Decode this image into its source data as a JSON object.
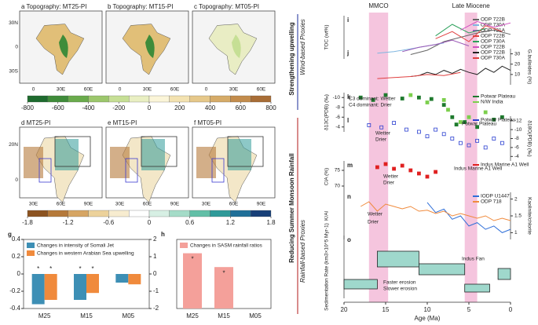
{
  "maps_top": {
    "titles": [
      "a Topography: MT25-PI",
      "b Topography: MT15-PI",
      "c Topography: MT05-PI"
    ],
    "lat_labels": [
      "30N",
      "0",
      "30S"
    ],
    "lon_labels": [
      "0",
      "30E",
      "60E"
    ]
  },
  "colorbar_top": {
    "ticks": [
      -800,
      -600,
      -400,
      -200,
      0,
      200,
      400,
      600,
      800
    ],
    "colors": [
      "#1e6b2e",
      "#3f8c3a",
      "#6aab4c",
      "#9cc76c",
      "#c6df95",
      "#e9efc2",
      "#fbf5d8",
      "#f3e2b0",
      "#e6c88a",
      "#d6ab68",
      "#c38c4c",
      "#a86d36"
    ]
  },
  "maps_bottom": {
    "titles": [
      "d MT25-PI",
      "e MT15-PI",
      "f MT05-PI"
    ],
    "lat_labels": [
      "20N",
      "0"
    ],
    "lon_labels": [
      "30E",
      "60E",
      "90E"
    ]
  },
  "colorbar_bottom": {
    "ticks": [
      -1.8,
      -1.2,
      -0.6,
      0,
      0.6,
      1.2,
      1.8
    ],
    "colors": [
      "#8c5320",
      "#b5793a",
      "#d6a563",
      "#ecd29b",
      "#f7ecd0",
      "#ffffff",
      "#d7efe4",
      "#a5dcc8",
      "#62bfa7",
      "#2f9a99",
      "#1f6f98",
      "#173f78"
    ]
  },
  "side_labels": {
    "upwelling": "Strengthening upwelling",
    "wind": "Wind-based Proxies",
    "rainfall": "Reducing Summer Monsoon Rainfall",
    "rain_proxies": "Rainfall-based Proxies"
  },
  "chart_data": [
    {
      "type": "bar",
      "panel": "g",
      "categories": [
        "M25",
        "M15",
        "M05"
      ],
      "ylim": [
        -0.4,
        0.4
      ],
      "yticks": [
        -0.4,
        -0.2,
        0,
        0.2,
        0.4
      ],
      "y2lim": [
        -2,
        2
      ],
      "y2ticks": [
        -2,
        -1,
        0,
        1,
        2
      ],
      "series": [
        {
          "name": "Changes in intensity of Somali Jet",
          "color": "#3d8fb5",
          "values": [
            -0.35,
            -0.3,
            -0.1
          ],
          "markers": [
            "*",
            "*",
            null
          ]
        },
        {
          "name": "Changes in western Arabian Sea upwelling",
          "color": "#f08a3c",
          "axis": "y2",
          "values": [
            -1.5,
            -1.1,
            -0.6
          ],
          "markers": [
            "*",
            "*",
            null
          ]
        }
      ]
    },
    {
      "type": "bar",
      "panel": "h",
      "categories": [
        "M25",
        "M15",
        "M05"
      ],
      "ylim": [
        0,
        20
      ],
      "series": [
        {
          "name": "Changes in SASM rainfall ratios",
          "color": "#f4a09a",
          "values": [
            16,
            12,
            0
          ],
          "markers": [
            "*",
            "*",
            null
          ]
        }
      ]
    },
    {
      "type": "line",
      "xlabel": "Age (Ma)",
      "xlim": [
        20,
        0
      ],
      "xticks": [
        20,
        15,
        10,
        5,
        0
      ],
      "bands": [
        {
          "label": "MMCO",
          "x": [
            17,
            14.7
          ],
          "color": "#f2b6d6"
        },
        {
          "label": "Late Miocene",
          "x": [
            5.5,
            4
          ],
          "color": "#f2b6d6"
        }
      ],
      "panels": [
        {
          "letter": "i",
          "ylabel": "TOC (wt%)",
          "ylim": [
            0,
            3
          ],
          "series": [
            {
              "name": "ODP 722B",
              "color": "#666666",
              "kind": "line",
              "x": [
                12,
                10,
                8,
                6,
                4,
                2,
                0
              ],
              "values": [
                0.3,
                0.6,
                1.2,
                1.5,
                1.8,
                2.0,
                1.7
              ]
            },
            {
              "name": "ODP 730A",
              "color": "#7fb6e0",
              "kind": "line",
              "x": [
                16,
                14,
                12,
                10,
                8
              ],
              "values": [
                0.4,
                0.5,
                0.7,
                0.9,
                1.1
              ]
            },
            {
              "name": "ODP 731A",
              "color": "#9b59b6",
              "kind": "line",
              "x": [
                13,
                11,
                9,
                7,
                5
              ],
              "values": [
                0.5,
                0.8,
                1.0,
                1.3,
                0.9
              ]
            },
            {
              "name": "ODP 722B",
              "color": "#e04040",
              "kind": "line",
              "x": [
                9,
                7,
                5,
                3,
                1
              ],
              "values": [
                1.4,
                1.9,
                1.2,
                2.3,
                1.9
              ]
            },
            {
              "name": "ODP 730A",
              "color": "#2ca05a",
              "kind": "line",
              "x": [
                9,
                7,
                5,
                3
              ],
              "values": [
                1.6,
                2.4,
                1.8,
                2.1
              ]
            },
            {
              "name": "ODP 722B",
              "color": "#d050c0",
              "kind": "line",
              "x": [
                6,
                4,
                2,
                0
              ],
              "values": [
                2.0,
                2.6,
                2.2,
                2.5
              ]
            }
          ]
        },
        {
          "letter": "j",
          "ylabel": "G.bulloides (%)",
          "side": "right",
          "ylim": [
            0,
            35
          ],
          "yticks": [
            10,
            20,
            30
          ],
          "series": [
            {
              "name": "ODP 722B",
              "color": "#222222",
              "kind": "line",
              "x": [
                12,
                11,
                10,
                9,
                8,
                7,
                6,
                5,
                4,
                3,
                2,
                1,
                0
              ],
              "values": [
                8,
                9,
                12,
                10,
                14,
                11,
                15,
                12,
                10,
                16,
                12,
                18,
                14
              ]
            },
            {
              "name": "ODP 730A",
              "color": "#e04040",
              "kind": "line",
              "x": [
                16,
                14,
                12,
                10,
                8,
                6
              ],
              "values": [
                6,
                7,
                8,
                10,
                9,
                12
              ]
            }
          ]
        },
        {
          "letter": "k",
          "ylabel": "δ13C(PDB) (‰)",
          "ylim": [
            -11,
            -3
          ],
          "invert": true,
          "yticks": [
            -10,
            -8,
            -6,
            -4
          ],
          "notes": [
            "C3 dominant: Wetter",
            "C4 dominant: Drier"
          ],
          "series": [
            {
              "name": "Potwar Plateau",
              "color": "#1f7a2e",
              "kind": "scatter",
              "x": [
                18,
                16.5,
                15,
                13,
                11,
                9.5,
                8,
                7,
                6.5,
                5.5,
                4,
                2,
                1
              ],
              "values": [
                -10,
                -9.5,
                -10.5,
                -9.8,
                -10,
                -9.7,
                -8.5,
                -6,
                -4.5,
                -5,
                -4,
                -5.5,
                -6
              ]
            },
            {
              "name": "N/W India",
              "color": "#7ccf4d",
              "kind": "scatter",
              "x": [
                12,
                10,
                8,
                7.5,
                6,
                5,
                3
              ],
              "values": [
                -10.5,
                -9,
                -9.5,
                -7.5,
                -5,
                -6,
                -7
              ]
            }
          ]
        },
        {
          "letter": "l",
          "ylabel": "δ18O(PDB) (‰)",
          "side": "right",
          "ylim": [
            -13,
            -3
          ],
          "invert": true,
          "yticks": [
            -12,
            -10,
            -8,
            -6,
            -4
          ],
          "notes": [
            "Potwar Plateau",
            "Wetter",
            "Drier"
          ],
          "series": [
            {
              "name": "Potwar Plateau",
              "color": "#2a3fd0",
              "kind": "scatter",
              "x": [
                17,
                15.5,
                14,
                12.5,
                11,
                10,
                9,
                8,
                7,
                6,
                5,
                4,
                3,
                2,
                1
              ],
              "values": [
                -11,
                -10.5,
                -11.5,
                -10,
                -9.5,
                -8.5,
                -10,
                -9,
                -8,
                -7,
                -6.5,
                -7.5,
                -6,
                -8,
                -7
              ]
            }
          ]
        },
        {
          "letter": "m",
          "ylabel": "CIA (%)",
          "ylim": [
            68,
            78
          ],
          "yticks": [
            70,
            75
          ],
          "notes": [
            "Indus Marine A1 Well",
            "Wetter",
            "Drier"
          ],
          "series": [
            {
              "name": "Indus Marine A1 Well",
              "color": "#e02020",
              "kind": "scatter",
              "x": [
                16,
                15,
                14,
                13,
                12,
                11,
                10,
                9
              ],
              "values": [
                76,
                77,
                75.5,
                76.5,
                75,
                74,
                73,
                74.5
              ]
            }
          ]
        },
        {
          "letter": "n",
          "ylabel": "K/Al",
          "ylim": [
            0,
            1
          ],
          "y2label": "Kaolinite/chlorite",
          "y2lim": [
            0.8,
            2.2
          ],
          "y2ticks": [
            1.0,
            1.5,
            2.0
          ],
          "notes": [
            "Wetter",
            "Drier"
          ],
          "series": [
            {
              "name": "IODP U1447",
              "color": "#2f6fd8",
              "kind": "line",
              "axis": "y2",
              "x": [
                10,
                9,
                8,
                7,
                6,
                5,
                4,
                3,
                2,
                1,
                0
              ],
              "values": [
                1.9,
                1.6,
                1.7,
                1.4,
                1.5,
                1.2,
                1.3,
                1.1,
                1.2,
                1.0,
                1.1
              ]
            },
            {
              "name": "ODP 718",
              "color": "#f08a3c",
              "kind": "line",
              "x": [
                18,
                17,
                16,
                15,
                14,
                13,
                12,
                11,
                10,
                9,
                8,
                7,
                6,
                5,
                4,
                3,
                2,
                1,
                0
              ],
              "values": [
                0.7,
                0.8,
                0.6,
                0.75,
                0.7,
                0.65,
                0.7,
                0.6,
                0.62,
                0.55,
                0.6,
                0.5,
                0.55,
                0.5,
                0.45,
                0.5,
                0.4,
                0.45,
                0.4
              ]
            }
          ]
        },
        {
          "letter": "o",
          "ylabel": "Sedimentation Rate (km3×10^5 Myr-1)",
          "ylim": [
            0,
            4
          ],
          "notes": [
            "Faster erosion",
            "Slower erosion",
            "Indus Fan"
          ],
          "color": "#9fd8cc",
          "boxes": [
            {
              "x": [
                20,
                16
              ],
              "y": [
                0.6,
                1.2
              ]
            },
            {
              "x": [
                16,
                11
              ],
              "y": [
                2.0,
                3.0
              ]
            },
            {
              "x": [
                11,
                5.5
              ],
              "y": [
                1.5,
                2.2
              ]
            },
            {
              "x": [
                5.5,
                2.5
              ],
              "y": [
                0.4,
                0.9
              ]
            },
            {
              "x": [
                1.5,
                0
              ],
              "y": [
                1.2,
                1.9
              ]
            }
          ]
        }
      ]
    }
  ]
}
